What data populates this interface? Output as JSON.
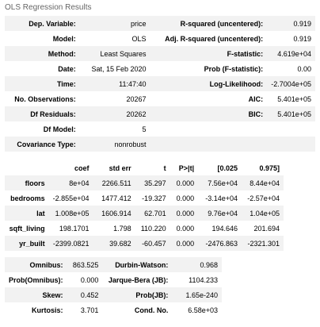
{
  "caption": "OLS Regression Results",
  "summary": [
    [
      "Dep. Variable:",
      "price",
      "R-squared (uncentered):",
      "0.919"
    ],
    [
      "Model:",
      "OLS",
      "Adj. R-squared (uncentered):",
      "0.919"
    ],
    [
      "Method:",
      "Least Squares",
      "F-statistic:",
      "4.619e+04"
    ],
    [
      "Date:",
      "Sat, 15 Feb 2020",
      "Prob (F-statistic):",
      "0.00"
    ],
    [
      "Time:",
      "11:47:40",
      "Log-Likelihood:",
      "-2.7004e+05"
    ],
    [
      "No. Observations:",
      "20267",
      "AIC:",
      "5.401e+05"
    ],
    [
      "Df Residuals:",
      "20262",
      "BIC:",
      "5.401e+05"
    ],
    [
      "Df Model:",
      "5",
      "",
      ""
    ],
    [
      "Covariance Type:",
      "nonrobust",
      "",
      ""
    ]
  ],
  "coef_headers": [
    "",
    "coef",
    "std err",
    "t",
    "P>|t|",
    "[0.025",
    "0.975]"
  ],
  "coef_rows": [
    [
      "floors",
      "8e+04",
      "2266.511",
      "35.297",
      "0.000",
      "7.56e+04",
      "8.44e+04"
    ],
    [
      "bedrooms",
      "-2.855e+04",
      "1477.412",
      "-19.327",
      "0.000",
      "-3.14e+04",
      "-2.57e+04"
    ],
    [
      "lat",
      "1.008e+05",
      "1606.914",
      "62.701",
      "0.000",
      "9.76e+04",
      "1.04e+05"
    ],
    [
      "sqft_living",
      "198.1701",
      "1.798",
      "110.220",
      "0.000",
      "194.646",
      "201.694"
    ],
    [
      "yr_built",
      "-2399.0821",
      "39.682",
      "-60.457",
      "0.000",
      "-2476.863",
      "-2321.301"
    ]
  ],
  "diagnostics": [
    [
      "Omnibus:",
      "863.525",
      "Durbin-Watson:",
      "0.968"
    ],
    [
      "Prob(Omnibus):",
      "0.000",
      "Jarque-Bera (JB):",
      "1104.233"
    ],
    [
      "Skew:",
      "0.452",
      "Prob(JB):",
      "1.65e-240"
    ],
    [
      "Kurtosis:",
      "3.701",
      "Cond. No.",
      "6.58e+03"
    ]
  ]
}
